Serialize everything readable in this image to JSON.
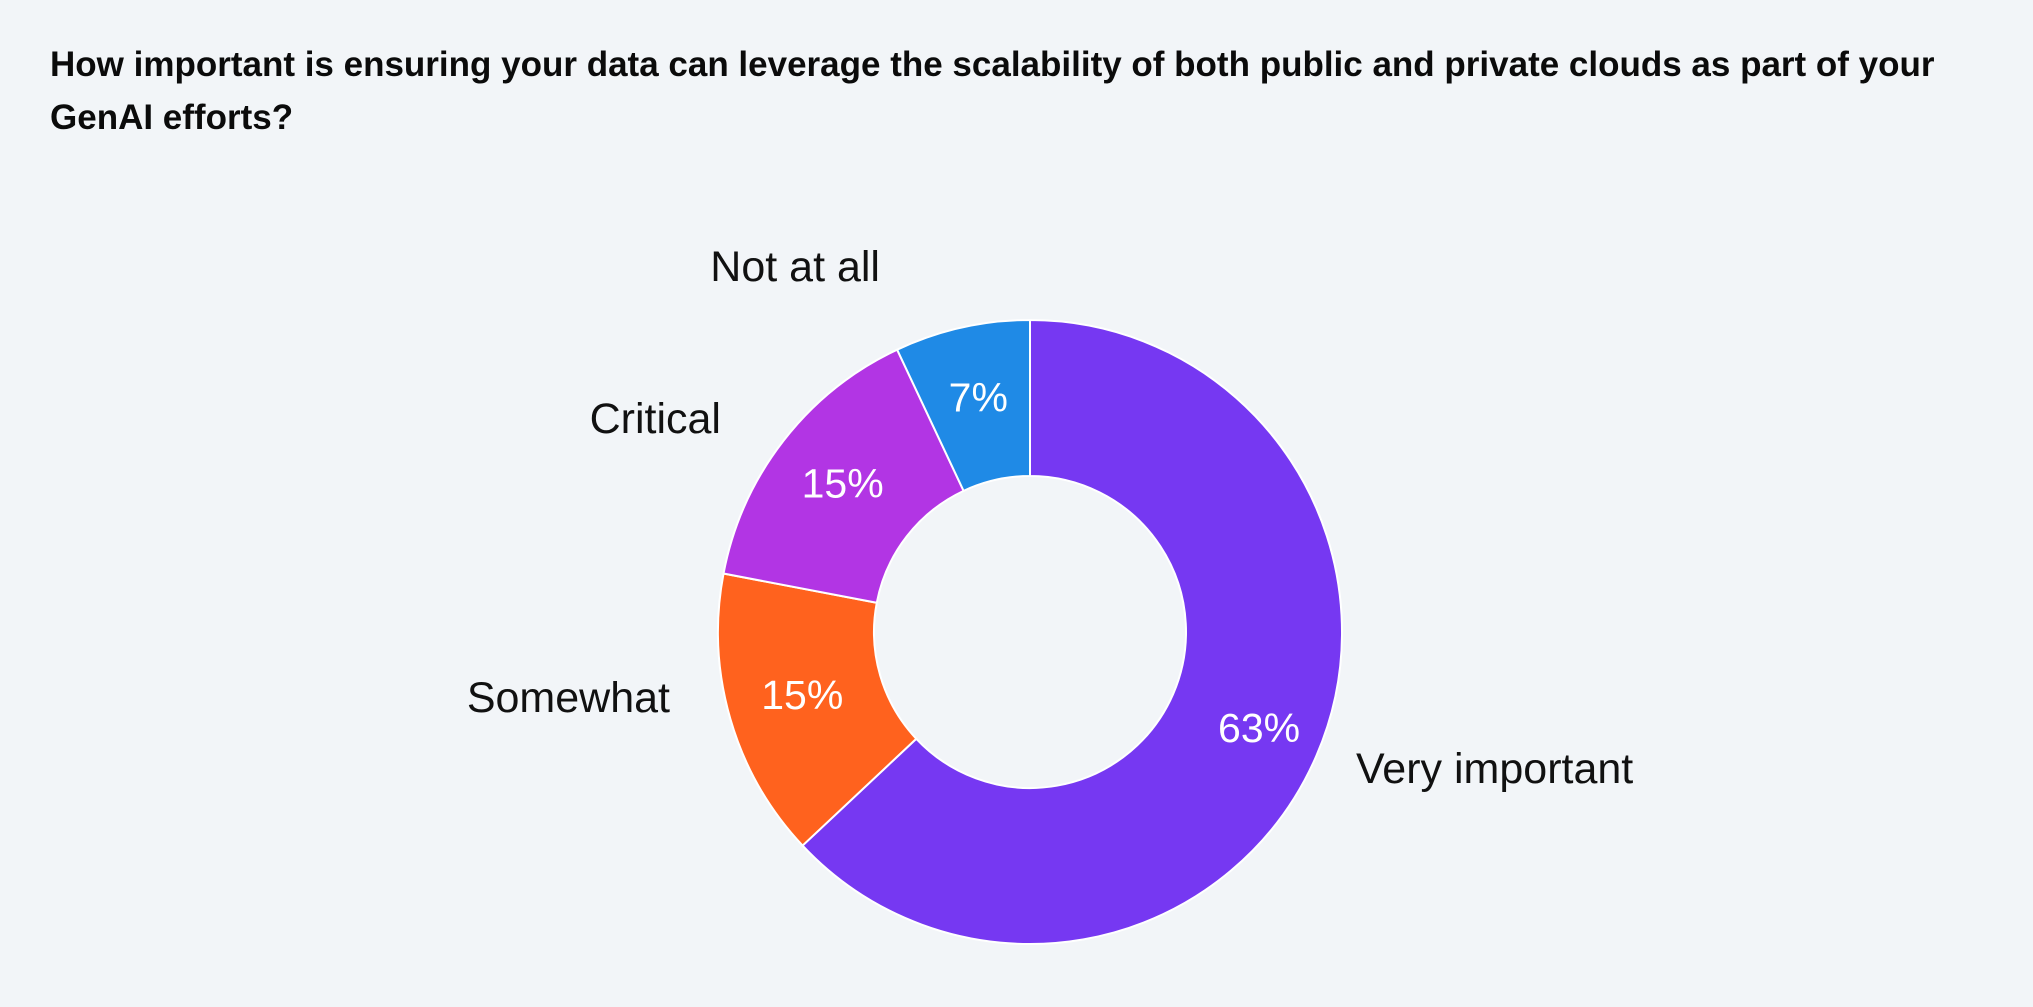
{
  "chart_data": {
    "type": "pie",
    "variant": "donut",
    "title": "How important is ensuring your data can leverage the scalability of both public and private clouds as part of your GenAI efforts?",
    "slices": [
      {
        "label": "Very important",
        "value": 63,
        "display": "63%",
        "color": "#7638f2"
      },
      {
        "label": "Somewhat",
        "value": 15,
        "display": "15%",
        "color": "#ff621e"
      },
      {
        "label": "Critical",
        "value": 15,
        "display": "15%",
        "color": "#b235e4"
      },
      {
        "label": "Not at all",
        "value": 7,
        "display": "7%",
        "color": "#1f8ae6"
      }
    ],
    "legend": "none",
    "grid": false
  }
}
